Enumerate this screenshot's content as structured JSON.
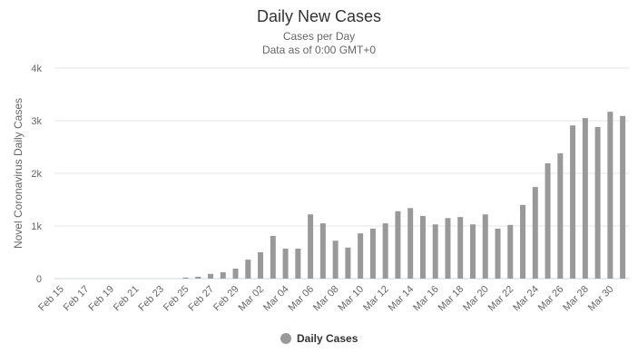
{
  "chart_data": {
    "type": "bar",
    "title": "Daily New Cases",
    "subtitle": [
      "Cases per Day",
      "Data as of 0:00 GMT+0"
    ],
    "xlabel": "",
    "ylabel": "Novel Coronavirus Daily Cases",
    "ylim": [
      0,
      4000
    ],
    "yticks": [
      0,
      1000,
      2000,
      3000,
      4000
    ],
    "ytick_labels": [
      "0",
      "1k",
      "2k",
      "3k",
      "4k"
    ],
    "grid": true,
    "legend": {
      "position": "bottom-center",
      "entries": [
        "Daily Cases"
      ]
    },
    "series_color": "#999999",
    "categories": [
      "Feb 15",
      "Feb 16",
      "Feb 17",
      "Feb 18",
      "Feb 19",
      "Feb 20",
      "Feb 21",
      "Feb 22",
      "Feb 23",
      "Feb 24",
      "Feb 25",
      "Feb 26",
      "Feb 27",
      "Feb 28",
      "Feb 29",
      "Mar 01",
      "Mar 02",
      "Mar 03",
      "Mar 04",
      "Mar 05",
      "Mar 06",
      "Mar 07",
      "Mar 08",
      "Mar 09",
      "Mar 10",
      "Mar 11",
      "Mar 12",
      "Mar 13",
      "Mar 14",
      "Mar 15",
      "Mar 16",
      "Mar 17",
      "Mar 18",
      "Mar 19",
      "Mar 20",
      "Mar 21",
      "Mar 22",
      "Mar 23",
      "Mar 24",
      "Mar 25",
      "Mar 26",
      "Mar 27",
      "Mar 28",
      "Mar 29",
      "Mar 30",
      "Mar 31"
    ],
    "xtick_labels": [
      "Feb 15",
      "Feb 17",
      "Feb 19",
      "Feb 21",
      "Feb 23",
      "Feb 25",
      "Feb 27",
      "Feb 29",
      "Mar 02",
      "Mar 04",
      "Mar 06",
      "Mar 08",
      "Mar 10",
      "Mar 12",
      "Mar 14",
      "Mar 16",
      "Mar 18",
      "Mar 20",
      "Mar 22",
      "Mar 24",
      "Mar 26",
      "Mar 28",
      "Mar 30"
    ],
    "series": [
      {
        "name": "Daily Cases",
        "values": [
          0,
          0,
          0,
          0,
          0,
          0,
          0,
          0,
          0,
          0,
          20,
          35,
          90,
          120,
          190,
          360,
          500,
          810,
          570,
          570,
          1220,
          1050,
          720,
          590,
          860,
          950,
          1050,
          1280,
          1340,
          1190,
          1030,
          1150,
          1170,
          1030,
          1220,
          950,
          1020,
          1400,
          1740,
          2190,
          2380,
          2910,
          3050,
          2880,
          3170,
          3090
        ]
      }
    ]
  }
}
